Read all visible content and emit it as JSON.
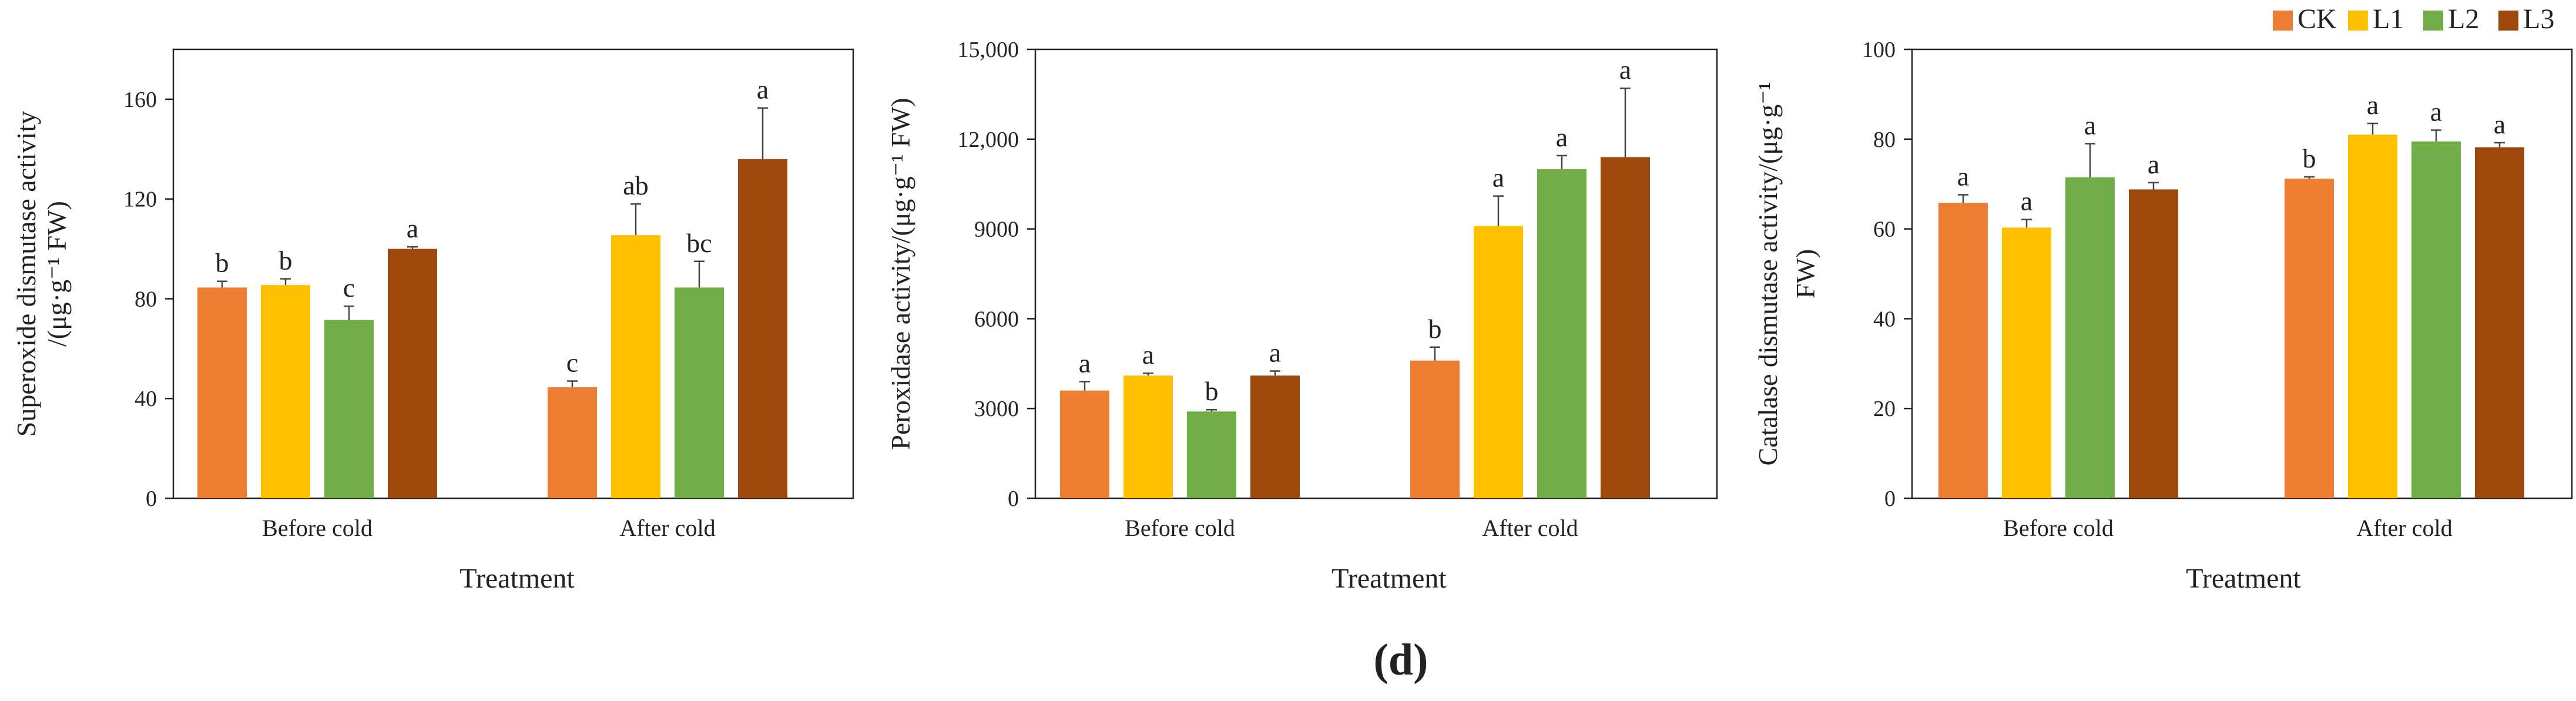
{
  "figure_label": "(d)",
  "legend": [
    {
      "name": "CK",
      "color": "#ED7D31"
    },
    {
      "name": "L1",
      "color": "#FFC000"
    },
    {
      "name": "L2",
      "color": "#70AD47"
    },
    {
      "name": "L3",
      "color": "#9E480E"
    }
  ],
  "chart_data": [
    {
      "type": "bar",
      "title": "",
      "xlabel": "Treatment",
      "ylabel_line1": "Superoxide dismutase activity",
      "ylabel_line2": "/(μg·g⁻¹ FW)",
      "categories": [
        "Before cold",
        "After cold"
      ],
      "ylim": [
        0,
        180
      ],
      "yticks": [
        0,
        40,
        80,
        120,
        160
      ],
      "ytick_labels": [
        "0",
        "40",
        "80",
        "120",
        "160"
      ],
      "series": [
        {
          "name": "CK",
          "values": [
            84.5,
            44.5
          ],
          "errors": [
            2.5,
            2.5
          ],
          "letters": [
            "b",
            "c"
          ]
        },
        {
          "name": "L1",
          "values": [
            85.5,
            105.5
          ],
          "errors": [
            2.5,
            12.5
          ],
          "letters": [
            "b",
            "ab"
          ]
        },
        {
          "name": "L2",
          "values": [
            71.5,
            84.5
          ],
          "errors": [
            5.5,
            10.5
          ],
          "letters": [
            "c",
            "bc"
          ]
        },
        {
          "name": "L3",
          "values": [
            100.0,
            136.0
          ],
          "errors": [
            0.8,
            20.5
          ],
          "letters": [
            "a",
            "a"
          ]
        }
      ]
    },
    {
      "type": "bar",
      "title": "",
      "xlabel": "Treatment",
      "ylabel_line1": "Peroxidase activity/(μg·g⁻¹ FW)",
      "ylabel_line2": "",
      "categories": [
        "Before cold",
        "After cold"
      ],
      "ylim": [
        0,
        15000
      ],
      "yticks": [
        0,
        3000,
        6000,
        9000,
        12000,
        15000
      ],
      "ytick_labels": [
        "0",
        "3000",
        "6000",
        "9000",
        "12,000",
        "15,000"
      ],
      "series": [
        {
          "name": "CK",
          "values": [
            3600,
            4600
          ],
          "errors": [
            300,
            450
          ],
          "letters": [
            "a",
            "b"
          ]
        },
        {
          "name": "L1",
          "values": [
            4100,
            9100
          ],
          "errors": [
            80,
            1000
          ],
          "letters": [
            "a",
            "a"
          ]
        },
        {
          "name": "L2",
          "values": [
            2900,
            11000
          ],
          "errors": [
            60,
            450
          ],
          "letters": [
            "b",
            "a"
          ]
        },
        {
          "name": "L3",
          "values": [
            4100,
            11400
          ],
          "errors": [
            150,
            2300
          ],
          "letters": [
            "a",
            "a"
          ]
        }
      ]
    },
    {
      "type": "bar",
      "title": "",
      "xlabel": "Treatment",
      "ylabel_line1": "Catalase dismutase activity/(μg·g⁻¹",
      "ylabel_line2": "FW)",
      "categories": [
        "Before cold",
        "After cold"
      ],
      "ylim": [
        0,
        100
      ],
      "yticks": [
        0,
        20,
        40,
        60,
        80,
        100
      ],
      "ytick_labels": [
        "0",
        "20",
        "40",
        "60",
        "80",
        "100"
      ],
      "series": [
        {
          "name": "CK",
          "values": [
            65.8,
            71.2
          ],
          "errors": [
            1.8,
            0.4
          ],
          "letters": [
            "a",
            "b"
          ]
        },
        {
          "name": "L1",
          "values": [
            60.3,
            81.0
          ],
          "errors": [
            1.8,
            2.5
          ],
          "letters": [
            "a",
            "a"
          ]
        },
        {
          "name": "L2",
          "values": [
            71.5,
            79.5
          ],
          "errors": [
            7.5,
            2.5
          ],
          "letters": [
            "a",
            "a"
          ]
        },
        {
          "name": "L3",
          "values": [
            68.8,
            78.2
          ],
          "errors": [
            1.5,
            1.0
          ],
          "letters": [
            "a",
            "a"
          ]
        }
      ]
    }
  ]
}
